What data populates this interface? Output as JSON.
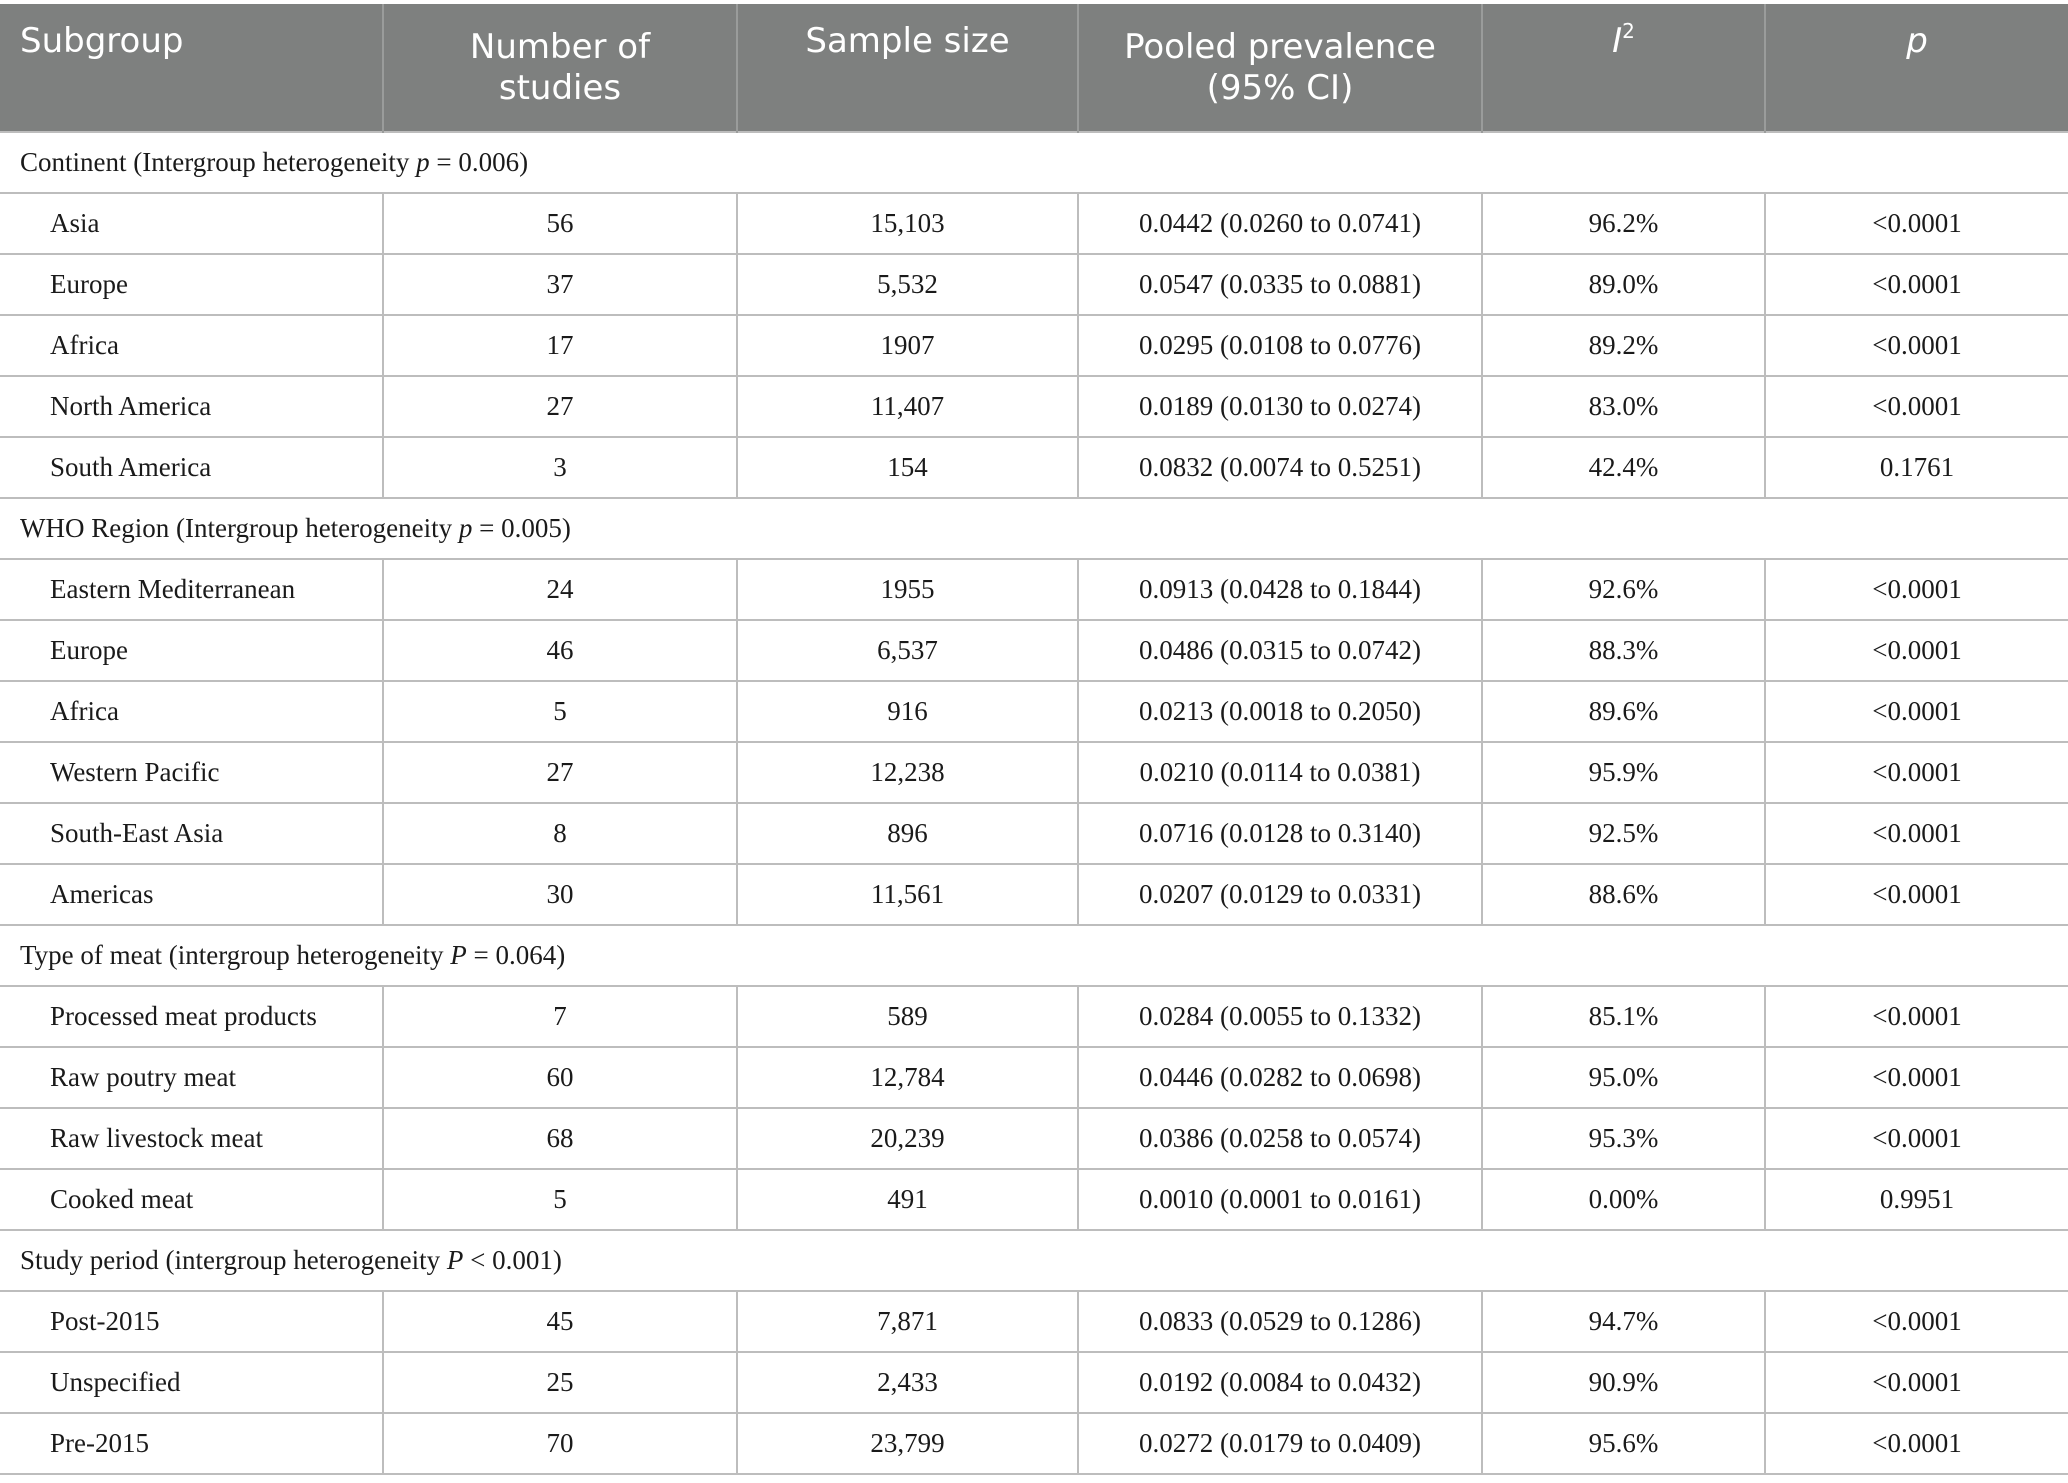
{
  "headers": {
    "subgroup": "Subgroup",
    "number_of_studies_line1": "Number of",
    "number_of_studies_line2": "studies",
    "sample_size": "Sample size",
    "pooled_line1": "Pooled prevalence",
    "pooled_line2": "(95% CI)",
    "i2_letter": "I",
    "i2_sup": "2",
    "p": "p"
  },
  "groups": [
    {
      "label_before": "Continent (Intergroup heterogeneity ",
      "label_var": "p",
      "label_after": " = 0.006)",
      "rows": [
        [
          "Asia",
          "56",
          "15,103",
          "0.0442 (0.0260 to 0.0741)",
          "96.2%",
          "<0.0001"
        ],
        [
          "Europe",
          "37",
          "5,532",
          "0.0547 (0.0335 to 0.0881)",
          "89.0%",
          "<0.0001"
        ],
        [
          "Africa",
          "17",
          "1907",
          "0.0295 (0.0108 to 0.0776)",
          "89.2%",
          "<0.0001"
        ],
        [
          "North America",
          "27",
          "11,407",
          "0.0189 (0.0130 to 0.0274)",
          "83.0%",
          "<0.0001"
        ],
        [
          "South America",
          "3",
          "154",
          "0.0832 (0.0074 to 0.5251)",
          "42.4%",
          "0.1761"
        ]
      ]
    },
    {
      "label_before": "WHO Region (Intergroup heterogeneity ",
      "label_var": "p",
      "label_after": " = 0.005)",
      "rows": [
        [
          "Eastern Mediterranean",
          "24",
          "1955",
          "0.0913 (0.0428 to 0.1844)",
          "92.6%",
          "<0.0001"
        ],
        [
          "Europe",
          "46",
          "6,537",
          "0.0486 (0.0315 to 0.0742)",
          "88.3%",
          "<0.0001"
        ],
        [
          "Africa",
          "5",
          "916",
          "0.0213 (0.0018 to 0.2050)",
          "89.6%",
          "<0.0001"
        ],
        [
          "Western Pacific",
          "27",
          "12,238",
          "0.0210 (0.0114 to 0.0381)",
          "95.9%",
          "<0.0001"
        ],
        [
          "South-East Asia",
          "8",
          "896",
          "0.0716 (0.0128 to 0.3140)",
          "92.5%",
          "<0.0001"
        ],
        [
          "Americas",
          "30",
          "11,561",
          "0.0207 (0.0129 to 0.0331)",
          "88.6%",
          "<0.0001"
        ]
      ]
    },
    {
      "label_before": "Type of meat (intergroup heterogeneity ",
      "label_var": "P",
      "label_after": " = 0.064)",
      "rows": [
        [
          "Processed meat products",
          "7",
          "589",
          "0.0284 (0.0055 to 0.1332)",
          "85.1%",
          "<0.0001"
        ],
        [
          "Raw poutry meat",
          "60",
          "12,784",
          "0.0446 (0.0282 to 0.0698)",
          "95.0%",
          "<0.0001"
        ],
        [
          "Raw livestock meat",
          "68",
          "20,239",
          "0.0386 (0.0258 to 0.0574)",
          "95.3%",
          "<0.0001"
        ],
        [
          "Cooked meat",
          "5",
          "491",
          "0.0010 (0.0001 to 0.0161)",
          "0.00%",
          "0.9951"
        ]
      ]
    },
    {
      "label_before": "Study period (intergroup heterogeneity ",
      "label_var": "P",
      "label_after": " < 0.001)",
      "rows": [
        [
          "Post-2015",
          "45",
          "7,871",
          "0.0833 (0.0529 to 0.1286)",
          "94.7%",
          "<0.0001"
        ],
        [
          "Unspecified",
          "25",
          "2,433",
          "0.0192 (0.0084 to 0.0432)",
          "90.9%",
          "<0.0001"
        ],
        [
          "Pre-2015",
          "70",
          "23,799",
          "0.0272 (0.0179 to 0.0409)",
          "95.6%",
          "<0.0001"
        ]
      ]
    }
  ]
}
